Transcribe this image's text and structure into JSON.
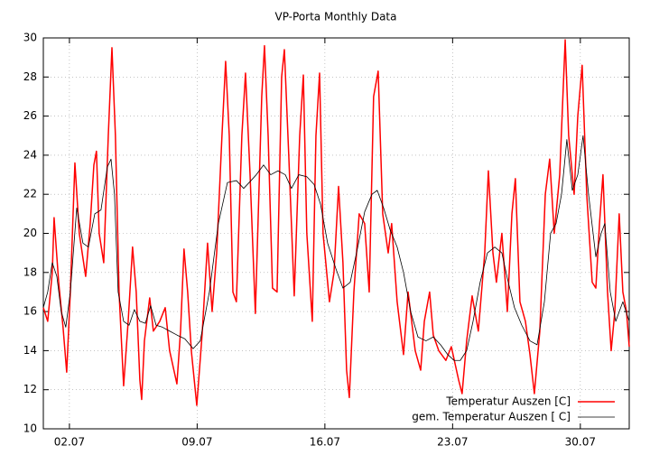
{
  "chart_data": {
    "type": "line",
    "title": "VP-Porta Monthly Data",
    "xlim": [
      0.57,
      32.68
    ],
    "ylim": [
      10,
      30
    ],
    "xticks": [
      {
        "value": 2,
        "label": "02.07"
      },
      {
        "value": 9,
        "label": "09.07"
      },
      {
        "value": 16,
        "label": "16.07"
      },
      {
        "value": 23,
        "label": "23.07"
      },
      {
        "value": 30,
        "label": "30.07"
      }
    ],
    "yticks": [
      10,
      12,
      14,
      16,
      18,
      20,
      22,
      24,
      26,
      28,
      30
    ],
    "grid": true,
    "legend": "lower right",
    "series": [
      {
        "name": "Temperatur Auszen [C]",
        "color": "#ff0000",
        "x": [
          0.57,
          0.81,
          1.06,
          1.16,
          1.41,
          1.65,
          1.85,
          2.05,
          2.3,
          2.54,
          2.89,
          3.14,
          3.34,
          3.48,
          3.63,
          3.88,
          4.13,
          4.33,
          4.52,
          4.72,
          4.97,
          5.22,
          5.46,
          5.66,
          5.86,
          5.96,
          6.11,
          6.4,
          6.6,
          6.95,
          7.25,
          7.49,
          7.89,
          8.09,
          8.28,
          8.48,
          8.68,
          8.98,
          9.27,
          9.57,
          9.82,
          10.07,
          10.36,
          10.56,
          10.76,
          10.96,
          11.15,
          11.45,
          11.65,
          11.9,
          12.19,
          12.54,
          12.69,
          12.89,
          13.13,
          13.38,
          13.63,
          13.78,
          14.02,
          14.32,
          14.62,
          14.82,
          15.01,
          15.31,
          15.51,
          15.71,
          15.9,
          16.25,
          16.5,
          16.75,
          16.99,
          17.19,
          17.34,
          17.59,
          17.88,
          18.18,
          18.43,
          18.67,
          18.92,
          19.17,
          19.47,
          19.66,
          19.96,
          20.31,
          20.56,
          20.95,
          21.25,
          21.45,
          21.74,
          21.94,
          22.24,
          22.63,
          22.93,
          23.33,
          23.52,
          23.77,
          24.07,
          24.41,
          24.76,
          24.96,
          25.21,
          25.4,
          25.7,
          26.0,
          26.25,
          26.44,
          26.69,
          26.99,
          27.24,
          27.48,
          27.78,
          28.08,
          28.32,
          28.57,
          28.87,
          29.17,
          29.36,
          29.66,
          29.86,
          30.1,
          30.35,
          30.65,
          30.85,
          31.05,
          31.24,
          31.49,
          31.69,
          31.89,
          32.13,
          32.33,
          32.53,
          32.68
        ],
        "values": [
          16.2,
          15.5,
          18,
          20.8,
          17.5,
          15.2,
          12.9,
          17,
          23.6,
          20,
          17.8,
          20.5,
          23.5,
          24.2,
          20,
          18.5,
          25,
          29.5,
          25,
          17,
          12.2,
          15.5,
          19.3,
          17,
          12.5,
          11.5,
          14.5,
          16.7,
          15,
          15.5,
          16.2,
          14,
          12.3,
          15,
          19.2,
          17,
          14,
          11.2,
          14.8,
          19.5,
          16,
          19,
          25,
          28.8,
          25,
          17,
          16.5,
          25,
          28.2,
          23,
          15.9,
          27,
          29.6,
          25,
          17.2,
          17,
          28,
          29.4,
          24,
          16.8,
          25,
          28.1,
          20,
          15.5,
          25,
          28.2,
          20,
          16.5,
          18,
          22.4,
          18.5,
          13,
          11.6,
          17,
          21,
          20.5,
          17,
          27,
          28.3,
          21,
          19,
          20.5,
          16.5,
          13.8,
          17,
          14,
          13,
          15.5,
          17,
          14.8,
          14,
          13.5,
          14.2,
          12.5,
          11.8,
          14.5,
          16.8,
          15,
          19,
          23.2,
          19,
          17.5,
          20,
          16,
          21,
          22.8,
          16.5,
          15.5,
          13.8,
          11.8,
          15,
          22,
          23.8,
          20,
          23,
          29.9,
          25,
          22,
          26,
          28.6,
          22,
          17.5,
          17.2,
          20.5,
          23,
          17,
          14,
          16,
          21,
          17,
          16,
          14.2
        ]
      },
      {
        "name": "gem. Temperatur Auszen [ C]",
        "color": "#000000",
        "x": [
          0.57,
          0.81,
          1.06,
          1.31,
          1.55,
          1.8,
          2.05,
          2.4,
          2.74,
          3.04,
          3.39,
          3.73,
          4.08,
          4.28,
          4.47,
          4.67,
          4.97,
          5.27,
          5.56,
          5.86,
          6.16,
          6.45,
          6.75,
          7.1,
          7.49,
          7.89,
          8.33,
          8.78,
          9.17,
          9.67,
          10.16,
          10.66,
          11.15,
          11.55,
          11.95,
          12.24,
          12.64,
          13.03,
          13.43,
          13.83,
          14.17,
          14.57,
          15.01,
          15.41,
          15.76,
          16.15,
          16.6,
          16.99,
          17.39,
          17.78,
          18.18,
          18.58,
          18.87,
          19.22,
          19.57,
          19.96,
          20.31,
          20.7,
          21.1,
          21.54,
          21.94,
          22.34,
          22.73,
          23.08,
          23.42,
          23.77,
          24.12,
          24.51,
          24.91,
          25.31,
          25.7,
          26.0,
          26.39,
          26.79,
          27.24,
          27.63,
          28.03,
          28.37,
          28.67,
          28.97,
          29.26,
          29.56,
          29.86,
          30.15,
          30.45,
          30.85,
          31.14,
          31.34,
          31.64,
          31.94,
          32.33,
          32.68
        ],
        "values": [
          16.2,
          17,
          18.5,
          17.8,
          16,
          15.2,
          17,
          21.3,
          19.5,
          19.3,
          21,
          21.2,
          23.4,
          23.8,
          22,
          17,
          15.5,
          15.3,
          16.1,
          15.5,
          15.4,
          16.3,
          15.3,
          15.2,
          15,
          14.8,
          14.6,
          14.1,
          14.5,
          17,
          20.5,
          22.6,
          22.7,
          22.3,
          22.7,
          23,
          23.5,
          23,
          23.2,
          23,
          22.3,
          23,
          22.9,
          22.5,
          21.5,
          19.5,
          18.2,
          17.2,
          17.5,
          19.2,
          21.1,
          22,
          22.2,
          21.3,
          20.2,
          19.3,
          18,
          16,
          14.7,
          14.5,
          14.7,
          14.3,
          13.8,
          13.5,
          13.5,
          14,
          15.5,
          17.5,
          19,
          19.3,
          19,
          17.7,
          16.2,
          15.3,
          14.5,
          14.3,
          16.5,
          20,
          20.5,
          22,
          24.8,
          22.2,
          23,
          25,
          22,
          18.8,
          20,
          20.5,
          17,
          15.5,
          16.5,
          15.5
        ]
      }
    ]
  }
}
